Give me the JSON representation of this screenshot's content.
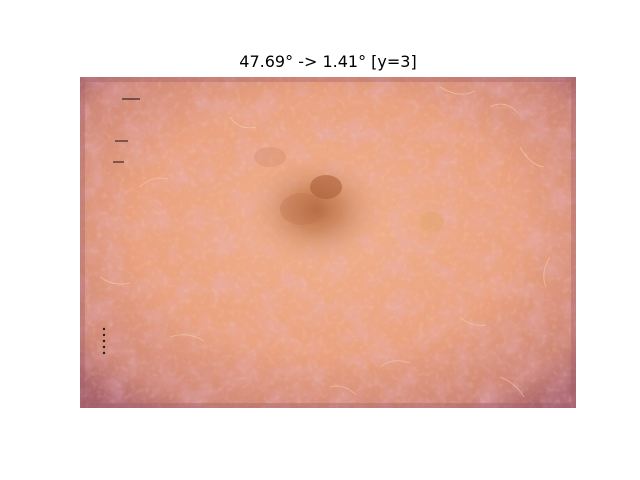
{
  "figure": {
    "title": "47.69° -> 1.41° [y=3]"
  },
  "image": {
    "subject": "dermoscopy-skin-lesion",
    "colors": {
      "skin_base": "#e9a27f",
      "skin_center": "#f0ae8a",
      "edge": "#b06f72",
      "vignette": "#9f5b68",
      "lesion_core": "#b5683f",
      "lesion_mid": "#cf8a5f",
      "hair": "#f6d7b4",
      "vessel": "#c9789a"
    }
  }
}
